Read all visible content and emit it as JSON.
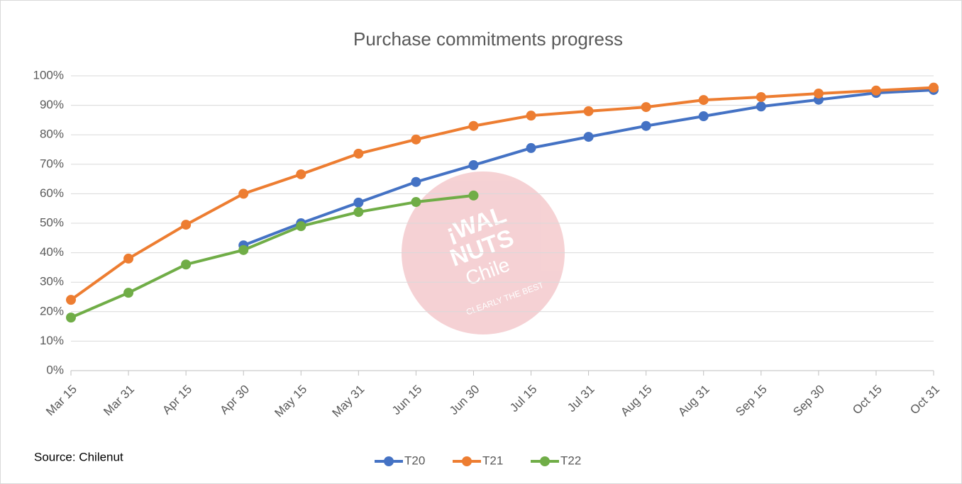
{
  "chart_data": {
    "type": "line",
    "title": "Purchase commitments progress",
    "annotations": [
      "Source: Chilenut"
    ],
    "watermark": [
      "¡WAL",
      "NUTS",
      "Chile",
      "CLEARLY THE BEST"
    ],
    "categories": [
      "Mar 15",
      "Mar 31",
      "Apr 15",
      "Apr 30",
      "May 15",
      "May 31",
      "Jun 15",
      "Jun 30",
      "Jul 15",
      "Jul 31",
      "Aug 15",
      "Aug 31",
      "Sep 15",
      "Sep 30",
      "Oct 15",
      "Oct 31"
    ],
    "series": [
      {
        "name": "T20",
        "color": "#4472c4",
        "values": [
          null,
          null,
          null,
          42.5,
          50,
          57,
          64,
          69.7,
          75.5,
          79.3,
          83,
          86.3,
          89.6,
          91.9,
          94.2,
          95.2
        ]
      },
      {
        "name": "T21",
        "color": "#ed7d31",
        "values": [
          24,
          38,
          49.5,
          60,
          66.6,
          73.6,
          78.4,
          83,
          86.5,
          88,
          89.4,
          91.8,
          92.8,
          94,
          95,
          96
        ]
      },
      {
        "name": "T22",
        "color": "#70ad47",
        "values": [
          18,
          26.4,
          36,
          40.9,
          49,
          53.8,
          57.2,
          59.4,
          null,
          null,
          null,
          null,
          null,
          null,
          null,
          null
        ]
      }
    ],
    "ylim": [
      0,
      100
    ],
    "yticks": [
      {
        "value": 0,
        "label": "0%"
      },
      {
        "value": 10,
        "label": "10%"
      },
      {
        "value": 20,
        "label": "20%"
      },
      {
        "value": 30,
        "label": "30%"
      },
      {
        "value": 40,
        "label": "40%"
      },
      {
        "value": 50,
        "label": "50%"
      },
      {
        "value": 60,
        "label": "60%"
      },
      {
        "value": 70,
        "label": "70%"
      },
      {
        "value": 80,
        "label": "80%"
      },
      {
        "value": 90,
        "label": "90%"
      },
      {
        "value": 100,
        "label": "100%"
      }
    ],
    "grid": true,
    "legend": "bottom"
  }
}
